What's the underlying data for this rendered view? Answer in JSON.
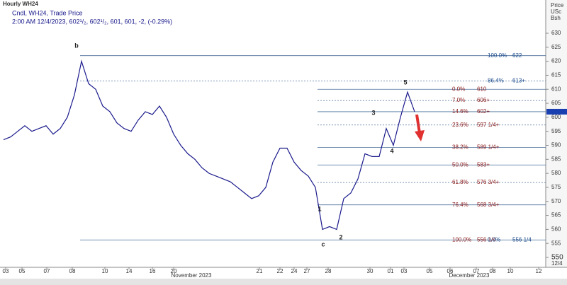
{
  "header": {
    "title": "Hourly WH24",
    "subtitle": "Cndl, WH24, Trade Price",
    "quote": "2:00 AM 12/4/2023, 602¹/₂, 602¹/₂, 601, 601, -2, (-0.29%)"
  },
  "axis_header": [
    "Price",
    "USc",
    "Bsh"
  ],
  "chart_data": {
    "type": "line",
    "title": "Hourly WH24",
    "series": [
      {
        "name": "WH24",
        "color": "#1a1a8c",
        "values": [
          592,
          593,
          595,
          597,
          595,
          596,
          597,
          594,
          596,
          600,
          608,
          620,
          612,
          610,
          604,
          602,
          598,
          596,
          595,
          599,
          602,
          601,
          604,
          600,
          594,
          590,
          587,
          585,
          582,
          580,
          579,
          578,
          577,
          575,
          573,
          571,
          572,
          575,
          584,
          589,
          589,
          584,
          581,
          579,
          575,
          560,
          561,
          560,
          571,
          573,
          578,
          587,
          586,
          586,
          596,
          590,
          600,
          609,
          602
        ]
      }
    ],
    "ylim": [
      548,
      635
    ],
    "yticks": [
      550,
      555,
      560,
      565,
      570,
      575,
      580,
      585,
      590,
      595,
      600,
      605,
      610,
      615,
      620,
      625,
      630
    ],
    "last_price": 602,
    "xticks": [
      "03",
      "05",
      "07",
      "08",
      "10",
      "14",
      "16",
      "20",
      "21",
      "22",
      "24",
      "27",
      "28",
      "30",
      "01",
      "03",
      "05",
      "06",
      "07",
      "08",
      "10",
      "12"
    ],
    "months": [
      "November 2023",
      "December 2023"
    ],
    "date_stamp": "12/4",
    "levels": [
      {
        "label": "100.0%",
        "value": 622,
        "value_label": "622",
        "dashed": false
      },
      {
        "label": "86.4%",
        "value": 613,
        "value_label": "613+",
        "dashed": true
      },
      {
        "label": "0.0%",
        "value": 610,
        "value_label": "610",
        "dashed": false
      },
      {
        "label": "7.0%",
        "value": 606,
        "value_label": "606+",
        "dashed": true
      },
      {
        "label": "14.6%",
        "value": 602,
        "value_label": "602+",
        "dashed": false
      },
      {
        "label": "23.6%",
        "value": 597.25,
        "value_label": "597 1/4+",
        "dashed": true
      },
      {
        "label": "38.2%",
        "value": 589.25,
        "value_label": "589 1/4+",
        "dashed": false
      },
      {
        "label": "50.0%",
        "value": 583,
        "value_label": "583+",
        "dashed": false
      },
      {
        "label": "61.8%",
        "value": 576.75,
        "value_label": "576 3/4+",
        "dashed": true
      },
      {
        "label": "76.4%",
        "value": 568.75,
        "value_label": "568 3/4+",
        "dashed": false
      },
      {
        "label": "100.0%",
        "value": 556.25,
        "value_label": "556 1/4",
        "dashed": false
      },
      {
        "label": "0.0%",
        "value": 556.25,
        "value_label": "556 1/4",
        "dashed": false
      }
    ],
    "annotations": [
      "b",
      "c",
      "1",
      "2",
      "3",
      "4",
      "5"
    ]
  }
}
